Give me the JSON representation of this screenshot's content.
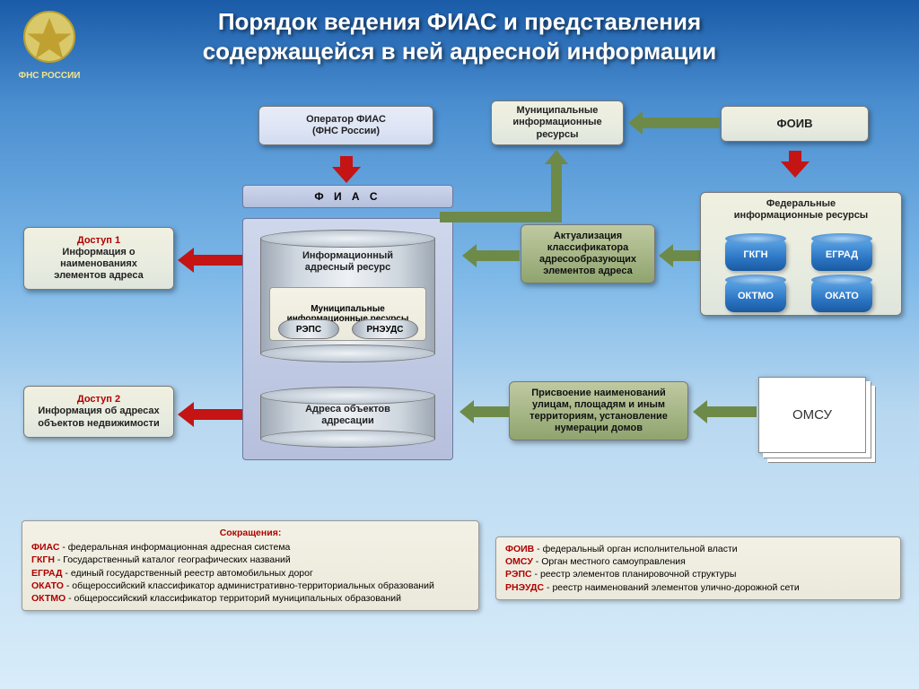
{
  "title_line1": "Порядок ведения ФИАС и представления",
  "title_line2": "содержащейся в ней адресной информации",
  "emblem_label": "ФНС РОССИИ",
  "top_boxes": {
    "operator_l1": "Оператор ФИАС",
    "operator_l2": "(ФНС России)",
    "municipal_l1": "Муниципальные",
    "municipal_l2": "информационные",
    "municipal_l3": "ресурсы",
    "foiv": "ФОИВ"
  },
  "fias_label": "Ф И А С",
  "access1_hdr": "Доступ 1",
  "access1_l1": "Информация о",
  "access1_l2": "наименованиях",
  "access1_l3": "элементов адреса",
  "access2_hdr": "Доступ 2",
  "access2_l1": "Информация об адресах",
  "access2_l2": "объектов недвижимости",
  "fed_res_l1": "Федеральные",
  "fed_res_l2": "информационные ресурсы",
  "db_labels": {
    "gkgn": "ГКГН",
    "egrad": "ЕГРАД",
    "oktmo": "ОКТМО",
    "okato": "ОКАТО"
  },
  "actual_l1": "Актуализация",
  "actual_l2": "классификатора",
  "actual_l3": "адресообразующих",
  "actual_l4": "элементов адреса",
  "naming_l1": "Присвоение наименований",
  "naming_l2": "улицам, площадям и иным",
  "naming_l3": "территориям, установление",
  "naming_l4": "нумерации домов",
  "omsu": "ОМСУ",
  "central": {
    "info_res_l1": "Информационный",
    "info_res_l2": "адресный ресурс",
    "mun_l1": "Муниципальные",
    "mun_l2": "информационные ресурсы",
    "reps": "РЭПС",
    "rneuds": "РНЭУДС",
    "addr_l1": "Адреса объектов",
    "addr_l2": "адресации"
  },
  "legend_hdr": "Сокращения:",
  "legend_left": [
    {
      "k": "ФИАС",
      "v": "- федеральная информационная адресная система"
    },
    {
      "k": "ГКГН",
      "v": "- Государственный каталог географических названий"
    },
    {
      "k": "ЕГРАД",
      "v": "- единый государственный реестр автомобильных дорог"
    },
    {
      "k": "ОКАТО",
      "v": "- общероссийский классификатор административно-территориальных образований"
    },
    {
      "k": "ОКТМО",
      "v": "- общероссийский классификатор территорий муниципальных образований"
    }
  ],
  "legend_right": [
    {
      "k": "ФОИВ",
      "v": "- федеральный орган исполнительной власти"
    },
    {
      "k": "ОМСУ",
      "v": "- Орган местного самоуправления"
    },
    {
      "k": "РЭПС",
      "v": "- реестр элементов планировочной структуры"
    },
    {
      "k": "РНЭУДС",
      "v": "- реестр наименований элементов улично-дорожной сети"
    }
  ],
  "colors": {
    "arrow_red": "#c41414",
    "arrow_olive": "#6e8a48",
    "box_olive_top": "#bfc9a1",
    "box_beige": "#f0f0e0",
    "panel": "#c6cfe6",
    "blue_cyl": "#2d76c4"
  }
}
